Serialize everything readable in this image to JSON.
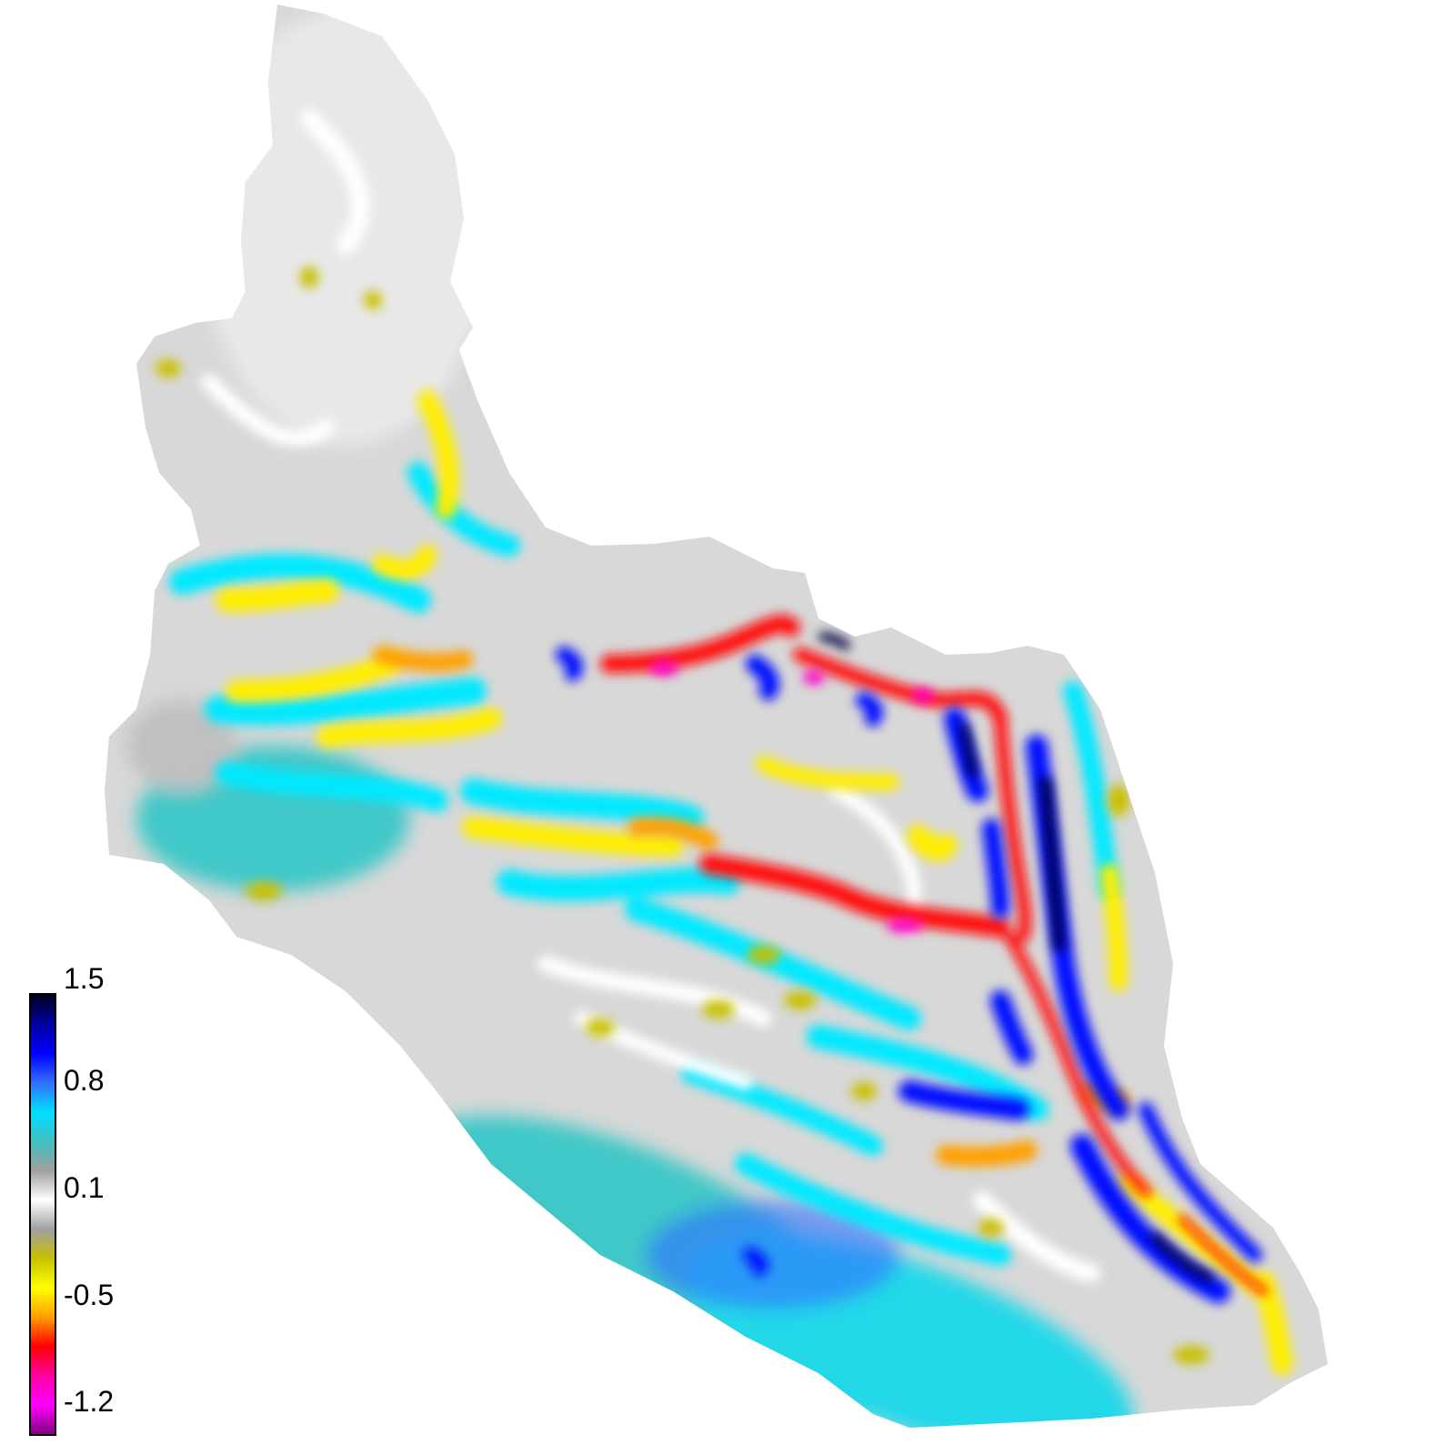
{
  "colorbar": {
    "ticks": [
      "1.5",
      "0.8",
      "0.1",
      "-0.5",
      "-1.2"
    ],
    "colors_top_to_bottom": [
      "#000020",
      "#0000a0",
      "#0000ff",
      "#3070ff",
      "#00e0ff",
      "#40c0c0",
      "#a0a0a0",
      "#ffffff",
      "#a0a0a0",
      "#c8c000",
      "#ffff00",
      "#ffa000",
      "#ff0000",
      "#ff00a0",
      "#ff00ff",
      "#800080"
    ]
  }
}
